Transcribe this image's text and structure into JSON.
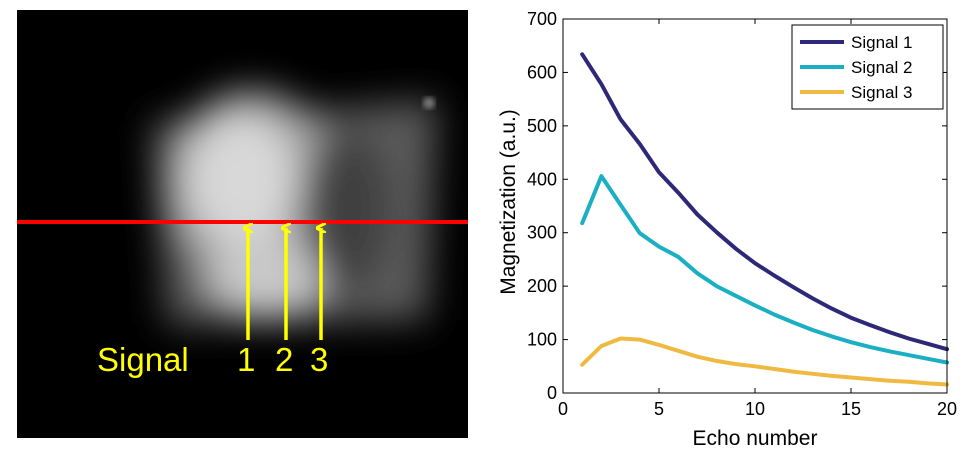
{
  "image_panel": {
    "signal_word": "Signal",
    "signal_numbers": [
      "1",
      "2",
      "3"
    ],
    "profile_line_color": "#ff0000",
    "annotation_color": "#ffff00"
  },
  "chart_data": {
    "type": "line",
    "title": "",
    "xlabel": "Echo number",
    "ylabel": "Magnetization (a.u.)",
    "xlim": [
      0,
      20
    ],
    "ylim": [
      0,
      700
    ],
    "xticks": [
      0,
      5,
      10,
      15,
      20
    ],
    "yticks": [
      0,
      100,
      200,
      300,
      400,
      500,
      600,
      700
    ],
    "legend_position": "top-right",
    "grid": false,
    "x": [
      1,
      2,
      3,
      4,
      5,
      6,
      7,
      8,
      9,
      10,
      11,
      12,
      13,
      14,
      15,
      16,
      17,
      18,
      19,
      20
    ],
    "series": [
      {
        "name": "Signal 1",
        "color": "#2e2878",
        "values": [
          634,
          578,
          512,
          466,
          413,
          375,
          334,
          301,
          270,
          243,
          220,
          198,
          177,
          158,
          141,
          127,
          114,
          102,
          92,
          82
        ]
      },
      {
        "name": "Signal 2",
        "color": "#1aafc2",
        "values": [
          318,
          406,
          352,
          299,
          274,
          255,
          224,
          200,
          182,
          164,
          147,
          132,
          118,
          106,
          95,
          86,
          78,
          71,
          64,
          57
        ]
      },
      {
        "name": "Signal 3",
        "color": "#f0b942",
        "values": [
          53,
          88,
          102,
          100,
          90,
          79,
          68,
          60,
          54,
          50,
          45,
          40,
          36,
          32,
          29,
          26,
          23,
          21,
          18,
          16
        ]
      }
    ]
  }
}
